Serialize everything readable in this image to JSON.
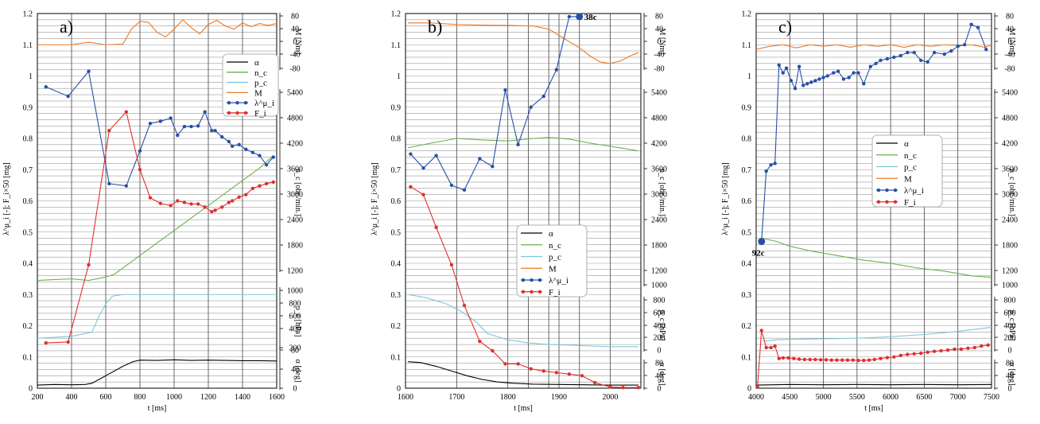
{
  "chart_data": [
    {
      "type": "line",
      "panel_label": "a)",
      "xlabel": "t [ms]",
      "ylabel": "λ^μ_i [-]; F_i×50 [mg]",
      "xlim": [
        200,
        1600
      ],
      "xticks": [
        200,
        400,
        600,
        800,
        1000,
        1200,
        1400,
        1600
      ],
      "ylim": [
        0,
        1.2
      ],
      "yticks": [
        "0",
        "0.1",
        "0.2",
        "0.3",
        "0.4",
        "0.5",
        "0.6",
        "0.7",
        "0.8",
        "0.9",
        "1",
        "1.1",
        "1.2"
      ],
      "grid": true,
      "legend_position": "top-right",
      "annotation": null,
      "right_axes": [
        {
          "label": "M [Nm]",
          "ticks": [
            "80",
            "40",
            "0",
            "-40",
            "-80"
          ]
        },
        {
          "label": "n_c [obr./min.]",
          "ticks": [
            "5400",
            "4800",
            "4200",
            "3600",
            "3000",
            "2400",
            "1800",
            "1200"
          ]
        },
        {
          "label": "p_c [hPa]",
          "ticks": [
            "1000",
            "800",
            "600",
            "400",
            "200"
          ]
        },
        {
          "label": "α [deg]",
          "ticks": [
            "80",
            "40",
            "0"
          ]
        }
      ],
      "legend": [
        "α",
        "n_c",
        "p_c",
        "M",
        "λ^μ_i",
        "F_i"
      ],
      "series": [
        {
          "name": "α",
          "color": "#000000",
          "x": [
            200,
            300,
            400,
            480,
            520,
            600,
            700,
            760,
            800,
            900,
            1000,
            1100,
            1200,
            1300,
            1400,
            1500,
            1600
          ],
          "y": [
            0.01,
            0.012,
            0.011,
            0.012,
            0.016,
            0.04,
            0.07,
            0.085,
            0.09,
            0.089,
            0.091,
            0.089,
            0.09,
            0.089,
            0.088,
            0.088,
            0.087
          ]
        },
        {
          "name": "n_c",
          "color": "#6ab04c",
          "x": [
            200,
            300,
            400,
            500,
            600,
            650,
            700,
            800,
            900,
            1000,
            1100,
            1200,
            1300,
            1400,
            1500,
            1580
          ],
          "y": [
            0.345,
            0.348,
            0.35,
            0.345,
            0.356,
            0.365,
            0.385,
            0.425,
            0.465,
            0.505,
            0.545,
            0.585,
            0.625,
            0.665,
            0.705,
            0.745
          ]
        },
        {
          "name": "p_c",
          "color": "#7ec8d8",
          "x": [
            200,
            300,
            400,
            520,
            560,
            600,
            640,
            700,
            800,
            900,
            1000,
            1100,
            1200,
            1300,
            1400,
            1500,
            1600
          ],
          "y": [
            0.16,
            0.163,
            0.166,
            0.18,
            0.23,
            0.27,
            0.295,
            0.3,
            0.3,
            0.3,
            0.3,
            0.3,
            0.3,
            0.3,
            0.3,
            0.3,
            0.3
          ]
        },
        {
          "name": "M",
          "color": "#f07820",
          "x": [
            200,
            400,
            500,
            600,
            700,
            750,
            800,
            850,
            900,
            950,
            1000,
            1050,
            1100,
            1150,
            1200,
            1250,
            1300,
            1350,
            1400,
            1450,
            1500,
            1550,
            1600
          ],
          "y": [
            1.1,
            1.1,
            1.108,
            1.1,
            1.102,
            1.15,
            1.175,
            1.172,
            1.14,
            1.125,
            1.15,
            1.18,
            1.155,
            1.135,
            1.165,
            1.178,
            1.16,
            1.15,
            1.17,
            1.158,
            1.168,
            1.162,
            1.168
          ]
        },
        {
          "name": "λ^μ_i",
          "color": "#2850a8",
          "marker": "circle",
          "x": [
            250,
            380,
            500,
            620,
            720,
            800,
            860,
            920,
            980,
            1020,
            1060,
            1100,
            1140,
            1180,
            1220,
            1240,
            1280,
            1320,
            1340,
            1380,
            1420,
            1460,
            1500,
            1540,
            1580
          ],
          "y": [
            0.965,
            0.935,
            1.015,
            0.655,
            0.648,
            0.76,
            0.848,
            0.855,
            0.865,
            0.81,
            0.838,
            0.838,
            0.84,
            0.885,
            0.825,
            0.825,
            0.805,
            0.79,
            0.775,
            0.78,
            0.765,
            0.755,
            0.745,
            0.715,
            0.74
          ]
        },
        {
          "name": "F_i",
          "color": "#e03030",
          "marker": "circle",
          "x": [
            250,
            380,
            500,
            620,
            720,
            800,
            860,
            920,
            980,
            1020,
            1060,
            1100,
            1140,
            1180,
            1220,
            1240,
            1280,
            1320,
            1340,
            1380,
            1420,
            1460,
            1500,
            1540,
            1580
          ],
          "y": [
            0.145,
            0.148,
            0.395,
            0.825,
            0.885,
            0.7,
            0.61,
            0.592,
            0.585,
            0.6,
            0.595,
            0.59,
            0.59,
            0.58,
            0.565,
            0.57,
            0.58,
            0.595,
            0.6,
            0.612,
            0.62,
            0.64,
            0.648,
            0.655,
            0.66
          ]
        }
      ]
    },
    {
      "type": "line",
      "panel_label": "b)",
      "xlabel": "t [ms]",
      "ylabel": "λ^μ_i [-]; F_i×50 [mg]",
      "xlim": [
        1600,
        2060
      ],
      "xticks": [
        1600,
        1700,
        1800,
        1900,
        2000
      ],
      "ylim": [
        0,
        1.2
      ],
      "yticks": [
        "0",
        "0.1",
        "0.2",
        "0.3",
        "0.4",
        "0.5",
        "0.6",
        "0.7",
        "0.8",
        "0.9",
        "1",
        "1.1",
        "1.2"
      ],
      "grid": true,
      "legend_position": "center",
      "annotation": {
        "text": "38c",
        "x": 1940,
        "y": 1.19
      },
      "right_axes": [
        {
          "label": "M [Nm]",
          "ticks": [
            "80",
            "40",
            "0",
            "-40",
            "-80"
          ]
        },
        {
          "label": "n_c [obr./min.]",
          "ticks": [
            "5400",
            "4800",
            "4200",
            "3600",
            "3000",
            "2400",
            "1800",
            "1200",
            "1000"
          ]
        },
        {
          "label": "p_c [hPa]",
          "ticks": [
            "800",
            "600",
            "400",
            "200",
            "0"
          ]
        },
        {
          "label": "α [deg]",
          "ticks": [
            "80",
            "40",
            "0"
          ]
        }
      ],
      "legend": [
        "α",
        "n_c",
        "p_c",
        "M",
        "λ^μ_i",
        "F_i"
      ],
      "series": [
        {
          "name": "α",
          "color": "#000000",
          "x": [
            1605,
            1630,
            1660,
            1690,
            1720,
            1750,
            1780,
            1810,
            1850,
            1900,
            1950,
            2000,
            2055
          ],
          "y": [
            0.085,
            0.082,
            0.07,
            0.055,
            0.04,
            0.028,
            0.02,
            0.016,
            0.013,
            0.012,
            0.011,
            0.01,
            0.01
          ]
        },
        {
          "name": "n_c",
          "color": "#6ab04c",
          "x": [
            1605,
            1650,
            1700,
            1750,
            1800,
            1850,
            1880,
            1920,
            1960,
            2000,
            2055
          ],
          "y": [
            0.77,
            0.785,
            0.8,
            0.795,
            0.792,
            0.8,
            0.803,
            0.798,
            0.785,
            0.775,
            0.76
          ]
        },
        {
          "name": "p_c",
          "color": "#7ec8d8",
          "x": [
            1605,
            1640,
            1680,
            1710,
            1740,
            1760,
            1800,
            1840,
            1880,
            1920,
            1960,
            2000,
            2055
          ],
          "y": [
            0.3,
            0.29,
            0.27,
            0.245,
            0.21,
            0.175,
            0.155,
            0.145,
            0.14,
            0.138,
            0.135,
            0.133,
            0.133
          ]
        },
        {
          "name": "M",
          "color": "#f07820",
          "x": [
            1605,
            1650,
            1700,
            1750,
            1800,
            1850,
            1880,
            1900,
            1920,
            1940,
            1960,
            1980,
            2000,
            2020,
            2040,
            2055
          ],
          "y": [
            1.17,
            1.17,
            1.165,
            1.163,
            1.162,
            1.16,
            1.15,
            1.13,
            1.11,
            1.09,
            1.065,
            1.045,
            1.04,
            1.048,
            1.065,
            1.075
          ]
        },
        {
          "name": "λ^μ_i",
          "color": "#2850a8",
          "marker": "circle",
          "x": [
            1610,
            1635,
            1660,
            1690,
            1715,
            1745,
            1770,
            1795,
            1820,
            1845,
            1870,
            1895,
            1920,
            1940
          ],
          "y": [
            0.75,
            0.705,
            0.745,
            0.65,
            0.635,
            0.735,
            0.71,
            0.955,
            0.78,
            0.9,
            0.935,
            1.02,
            1.19,
            1.19
          ]
        },
        {
          "name": "F_i",
          "color": "#e03030",
          "marker": "circle",
          "x": [
            1610,
            1635,
            1660,
            1690,
            1715,
            1745,
            1770,
            1795,
            1820,
            1845,
            1870,
            1895,
            1920,
            1945,
            1970,
            2000,
            2025,
            2055
          ],
          "y": [
            0.645,
            0.62,
            0.515,
            0.395,
            0.265,
            0.15,
            0.12,
            0.078,
            0.078,
            0.062,
            0.055,
            0.05,
            0.045,
            0.04,
            0.018,
            0.004,
            0.002,
            0.002
          ]
        }
      ]
    },
    {
      "type": "line",
      "panel_label": "c)",
      "xlabel": "t [ms]",
      "ylabel": "λ^μ_i [-]; F_i×50 [mg]",
      "xlim": [
        4000,
        7500
      ],
      "xticks": [
        4000,
        4500,
        5000,
        5500,
        6000,
        6500,
        7000,
        7500
      ],
      "ylim": [
        0,
        1.2
      ],
      "yticks": [
        "0",
        "0.1",
        "0.2",
        "0.3",
        "0.4",
        "0.5",
        "0.6",
        "0.7",
        "0.8",
        "0.9",
        "1",
        "1.1",
        "1.2"
      ],
      "grid": true,
      "legend_position": "center-right",
      "annotation": {
        "text": "92c",
        "x": 4080,
        "y": 0.47
      },
      "right_axes": [
        {
          "label": "M [Nm]",
          "ticks": [
            "80",
            "40",
            "0",
            "-40",
            "-80"
          ]
        },
        {
          "label": "n_c [obr./min.]",
          "ticks": [
            "5400",
            "4800",
            "4200",
            "3600",
            "3000",
            "2400",
            "1800",
            "1200",
            "1000"
          ]
        },
        {
          "label": "p_c [hPa]",
          "ticks": [
            "800",
            "600",
            "400",
            "200",
            "0"
          ]
        },
        {
          "label": "α [deg]",
          "ticks": [
            "80",
            "40",
            "0"
          ]
        }
      ],
      "legend": [
        "α",
        "n_c",
        "p_c",
        "M",
        "λ^μ_i",
        "F_i"
      ],
      "series": [
        {
          "name": "α",
          "color": "#000000",
          "x": [
            4000,
            4500,
            5000,
            5500,
            6000,
            6500,
            7000,
            7500
          ],
          "y": [
            0.01,
            0.012,
            0.011,
            0.012,
            0.011,
            0.012,
            0.011,
            0.012
          ]
        },
        {
          "name": "n_c",
          "color": "#6ab04c",
          "x": [
            4100,
            4300,
            4500,
            4800,
            5200,
            5600,
            6000,
            6400,
            6800,
            7200,
            7500
          ],
          "y": [
            0.48,
            0.47,
            0.455,
            0.44,
            0.425,
            0.41,
            0.4,
            0.385,
            0.375,
            0.36,
            0.355
          ]
        },
        {
          "name": "p_c",
          "color": "#7ec8d8",
          "x": [
            4100,
            4300,
            4600,
            5000,
            5500,
            6000,
            6500,
            7000,
            7500
          ],
          "y": [
            0.15,
            0.155,
            0.157,
            0.158,
            0.16,
            0.165,
            0.172,
            0.182,
            0.195
          ]
        },
        {
          "name": "M",
          "color": "#f07820",
          "x": [
            4000,
            4200,
            4400,
            4600,
            4800,
            5000,
            5200,
            5400,
            5600,
            5800,
            6000,
            6200,
            6400,
            6600,
            6800,
            7000,
            7200,
            7400,
            7500
          ],
          "y": [
            1.085,
            1.095,
            1.1,
            1.09,
            1.1,
            1.095,
            1.1,
            1.092,
            1.1,
            1.095,
            1.1,
            1.092,
            1.1,
            1.095,
            1.1,
            1.098,
            1.1,
            1.092,
            1.1
          ]
        },
        {
          "name": "λ^μ_i",
          "color": "#2850a8",
          "marker": "circle",
          "x": [
            4080,
            4150,
            4220,
            4280,
            4340,
            4400,
            4450,
            4520,
            4580,
            4640,
            4700,
            4760,
            4820,
            4880,
            4940,
            5000,
            5060,
            5150,
            5220,
            5300,
            5380,
            5450,
            5520,
            5600,
            5700,
            5780,
            5850,
            5950,
            6050,
            6150,
            6250,
            6350,
            6450,
            6550,
            6650,
            6800,
            6900,
            7000,
            7100,
            7200,
            7300,
            7420
          ],
          "y": [
            0.47,
            0.695,
            0.715,
            0.72,
            1.035,
            1.01,
            1.025,
            0.985,
            0.96,
            1.03,
            0.97,
            0.975,
            0.98,
            0.985,
            0.99,
            0.995,
            1.0,
            1.01,
            1.015,
            0.99,
            0.995,
            1.01,
            1.01,
            0.975,
            1.03,
            1.04,
            1.05,
            1.055,
            1.06,
            1.065,
            1.075,
            1.075,
            1.05,
            1.045,
            1.075,
            1.07,
            1.08,
            1.095,
            1.1,
            1.165,
            1.155,
            1.085
          ]
        },
        {
          "name": "F_i",
          "color": "#e03030",
          "marker": "circle",
          "x": [
            4020,
            4080,
            4150,
            4220,
            4280,
            4340,
            4400,
            4480,
            4560,
            4640,
            4720,
            4800,
            4880,
            4960,
            5040,
            5120,
            5200,
            5280,
            5360,
            5440,
            5520,
            5600,
            5680,
            5760,
            5850,
            5950,
            6050,
            6150,
            6250,
            6350,
            6450,
            6550,
            6650,
            6750,
            6850,
            6950,
            7050,
            7150,
            7250,
            7350,
            7450
          ],
          "y": [
            0.005,
            0.185,
            0.13,
            0.13,
            0.135,
            0.095,
            0.097,
            0.097,
            0.095,
            0.093,
            0.092,
            0.092,
            0.092,
            0.091,
            0.091,
            0.09,
            0.09,
            0.09,
            0.09,
            0.09,
            0.089,
            0.089,
            0.09,
            0.092,
            0.095,
            0.098,
            0.1,
            0.105,
            0.108,
            0.11,
            0.112,
            0.115,
            0.118,
            0.12,
            0.122,
            0.125,
            0.125,
            0.128,
            0.13,
            0.135,
            0.138
          ]
        }
      ]
    }
  ]
}
